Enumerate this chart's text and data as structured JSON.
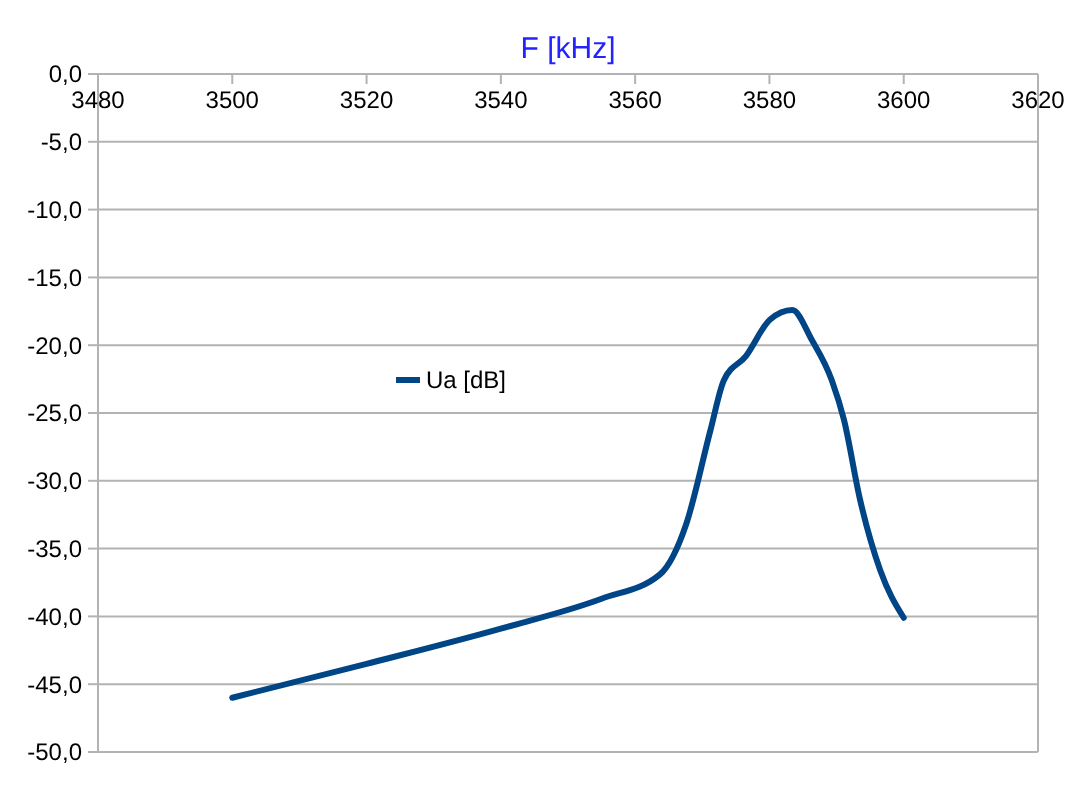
{
  "chart_data": {
    "type": "line",
    "xlabel": "F [kHz]",
    "xlim": [
      3480,
      3620
    ],
    "xticks": [
      3480,
      3500,
      3520,
      3540,
      3560,
      3580,
      3600,
      3620
    ],
    "ylim": [
      -50,
      0
    ],
    "yticks": [
      {
        "value": 0,
        "label": "0,0"
      },
      {
        "value": -5,
        "label": "-5,0"
      },
      {
        "value": -10,
        "label": "-10,0"
      },
      {
        "value": -15,
        "label": "-15,0"
      },
      {
        "value": -20,
        "label": "-20,0"
      },
      {
        "value": -25,
        "label": "-25,0"
      },
      {
        "value": -30,
        "label": "-30,0"
      },
      {
        "value": -35,
        "label": "-35,0"
      },
      {
        "value": -40,
        "label": "-40,0"
      },
      {
        "value": -45,
        "label": "-45,0"
      },
      {
        "value": -50,
        "label": "-50,0"
      }
    ],
    "grid": "y",
    "legend": "left",
    "marker": "none",
    "series": [
      {
        "name": "Ua [dB]",
        "color": "#004586",
        "x": [
          3500,
          3520,
          3540,
          3555,
          3563.7,
          3567.6,
          3571.2,
          3573.2,
          3576.5,
          3580.1,
          3583.4,
          3586.3,
          3589.3,
          3591.1,
          3593.5,
          3596.5,
          3600
        ],
        "values": [
          -46.0,
          -43.5,
          -40.9,
          -38.7,
          -36.9,
          -33.2,
          -26.3,
          -22.6,
          -20.8,
          -18.1,
          -17.4,
          -19.6,
          -22.6,
          -25.5,
          -31.4,
          -36.6,
          -40.1
        ]
      }
    ]
  }
}
